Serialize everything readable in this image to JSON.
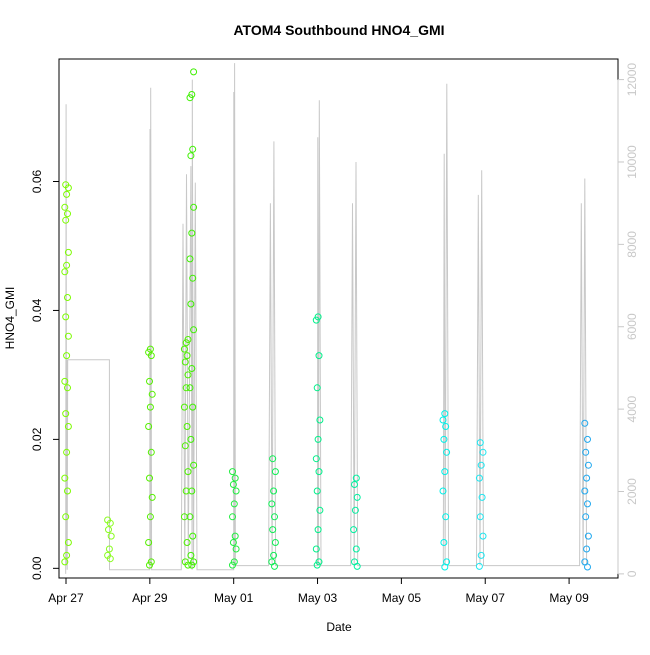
{
  "chart_data": {
    "type": "scatter",
    "title": "ATOM4 Southbound HNO4_GMI",
    "xlabel": "Date",
    "ylabel": "HNO4_GMI",
    "xlim": [
      "2018-04-26T20:00",
      "2018-05-10T04:00"
    ],
    "ylim": [
      -0.0015,
      0.079
    ],
    "y2lim": [
      -100,
      12500
    ],
    "x_tick_dates": [
      "2018-04-27",
      "2018-04-29",
      "2018-05-01",
      "2018-05-03",
      "2018-05-05",
      "2018-05-07",
      "2018-05-09"
    ],
    "x_tick_labels": [
      "Apr 27",
      "Apr 29",
      "May 01",
      "May 03",
      "May 05",
      "May 07",
      "May 09"
    ],
    "y_ticks": [
      0.0,
      0.02,
      0.04,
      0.06
    ],
    "y_tick_labels": [
      "0.00",
      "0.02",
      "0.04",
      "0.06"
    ],
    "y2_ticks": [
      0,
      2000,
      4000,
      6000,
      8000,
      10000,
      12000
    ],
    "y2_tick_labels": [
      "0",
      "2000",
      "4000",
      "6000",
      "8000",
      "10000",
      "12000"
    ],
    "grid": false,
    "legend": "none",
    "colors": {
      "altitude_line": "#c8c8c8",
      "axis": "#000000",
      "secondary_axis": "#c8c8c8",
      "palette": [
        "#7cfc00",
        "#55f000",
        "#2ef23a",
        "#00f07a",
        "#00f0b0",
        "#00f0e8",
        "#1ee6f0",
        "#1fa8ef"
      ]
    },
    "series": [
      {
        "x": "2018-04-27T00:20",
        "y": [
          0.001,
          0.002,
          0.004,
          0.008,
          0.012,
          0.014,
          0.018,
          0.022,
          0.024,
          0.028,
          0.029,
          0.033,
          0.036,
          0.039,
          0.042,
          0.046,
          0.047,
          0.049,
          0.054,
          0.055,
          0.056,
          0.058,
          0.059,
          0.0595
        ],
        "color": "#7cfc00"
      },
      {
        "x": "2018-04-28T00:50",
        "y": [
          0.0015,
          0.002,
          0.003,
          0.005,
          0.006,
          0.007,
          0.0075
        ],
        "color": "#8afc20"
      },
      {
        "x": "2018-04-29T00:20",
        "y": [
          0.0005,
          0.001,
          0.004,
          0.008,
          0.011,
          0.014,
          0.018,
          0.022,
          0.025,
          0.027,
          0.029,
          0.033,
          0.0335,
          0.034
        ],
        "color": "#55f000"
      },
      {
        "x": "2018-04-29T20:50",
        "y": [
          0.0005,
          0.001,
          0.004,
          0.008,
          0.012,
          0.015,
          0.019,
          0.022,
          0.025,
          0.028,
          0.03,
          0.032,
          0.033,
          0.034,
          0.035,
          0.0355
        ],
        "color": "#4ef000"
      },
      {
        "x": "2018-04-30T00:00",
        "y": [
          0.0005,
          0.001,
          0.002,
          0.005,
          0.008,
          0.012,
          0.016,
          0.02,
          0.025,
          0.028,
          0.031,
          0.037,
          0.041,
          0.045,
          0.048,
          0.052,
          0.056,
          0.064,
          0.065,
          0.073,
          0.0735,
          0.077
        ],
        "color": "#3ef000"
      },
      {
        "x": "2018-05-01T00:20",
        "y": [
          0.0005,
          0.001,
          0.003,
          0.004,
          0.005,
          0.008,
          0.01,
          0.012,
          0.013,
          0.014,
          0.015
        ],
        "color": "#22ee40"
      },
      {
        "x": "2018-05-01T22:50",
        "y": [
          0.0003,
          0.001,
          0.002,
          0.004,
          0.006,
          0.008,
          0.01,
          0.012,
          0.015,
          0.017
        ],
        "color": "#10ee55"
      },
      {
        "x": "2018-05-03T00:20",
        "y": [
          0.0005,
          0.001,
          0.003,
          0.006,
          0.009,
          0.012,
          0.015,
          0.017,
          0.02,
          0.023,
          0.028,
          0.033,
          0.0385,
          0.039
        ],
        "color": "#00f08a"
      },
      {
        "x": "2018-05-03T21:40",
        "y": [
          0.0003,
          0.001,
          0.003,
          0.006,
          0.009,
          0.011,
          0.013,
          0.014
        ],
        "color": "#00f0a0"
      },
      {
        "x": "2018-05-06T00:50",
        "y": [
          0.0002,
          0.001,
          0.004,
          0.008,
          0.012,
          0.015,
          0.018,
          0.02,
          0.022,
          0.023,
          0.024
        ],
        "color": "#00f0e8"
      },
      {
        "x": "2018-05-06T21:40",
        "y": [
          0.0003,
          0.002,
          0.005,
          0.008,
          0.011,
          0.014,
          0.016,
          0.018,
          0.0195
        ],
        "color": "#1ee6f0"
      },
      {
        "x": "2018-05-09T10:00",
        "y": [
          0.0002,
          0.001,
          0.003,
          0.005,
          0.008,
          0.01,
          0.012,
          0.014,
          0.016,
          0.018,
          0.02,
          0.0225
        ],
        "color": "#1fa8ef"
      }
    ],
    "altitude_series": {
      "name": "",
      "points": [
        [
          "2018-04-26T23:50",
          0
        ],
        [
          "2018-04-27T00:05",
          11400
        ],
        [
          "2018-04-27T00:20",
          200
        ],
        [
          "2018-04-27T00:25",
          5200
        ],
        [
          "2018-04-27T00:40",
          100
        ],
        [
          "2018-04-27T01:00",
          5200
        ],
        [
          "2018-04-28T00:50",
          5200
        ],
        [
          "2018-04-28T00:55",
          100
        ],
        [
          "2018-04-29T00:00",
          100
        ],
        [
          "2018-04-29T00:05",
          10800
        ],
        [
          "2018-04-29T00:20",
          200
        ],
        [
          "2018-04-29T00:30",
          11800
        ],
        [
          "2018-04-29T01:00",
          100
        ],
        [
          "2018-04-29T18:00",
          100
        ],
        [
          "2018-04-29T19:00",
          8500
        ],
        [
          "2018-04-29T20:00",
          200
        ],
        [
          "2018-04-29T21:00",
          9700
        ],
        [
          "2018-04-29T22:00",
          300
        ],
        [
          "2018-04-29T23:30",
          9900
        ],
        [
          "2018-04-30T00:10",
          100
        ],
        [
          "2018-04-30T00:20",
          12000
        ],
        [
          "2018-04-30T01:00",
          200
        ],
        [
          "2018-04-30T02:00",
          9500
        ],
        [
          "2018-04-30T03:00",
          100
        ],
        [
          "2018-05-01T00:00",
          100
        ],
        [
          "2018-05-01T00:05",
          11700
        ],
        [
          "2018-05-01T00:20",
          200
        ],
        [
          "2018-05-01T00:30",
          12400
        ],
        [
          "2018-05-01T01:00",
          200
        ],
        [
          "2018-05-01T20:00",
          200
        ],
        [
          "2018-05-01T21:00",
          9000
        ],
        [
          "2018-05-01T22:00",
          200
        ],
        [
          "2018-05-01T23:00",
          10500
        ],
        [
          "2018-05-02T00:00",
          200
        ],
        [
          "2018-05-03T00:00",
          200
        ],
        [
          "2018-05-03T00:10",
          10600
        ],
        [
          "2018-05-03T00:30",
          200
        ],
        [
          "2018-05-03T01:00",
          11500
        ],
        [
          "2018-05-03T02:00",
          200
        ],
        [
          "2018-05-03T19:00",
          200
        ],
        [
          "2018-05-03T20:00",
          9000
        ],
        [
          "2018-05-03T21:00",
          200
        ],
        [
          "2018-05-03T22:00",
          10000
        ],
        [
          "2018-05-03T23:00",
          200
        ],
        [
          "2018-05-06T00:00",
          200
        ],
        [
          "2018-05-06T00:30",
          10200
        ],
        [
          "2018-05-06T01:00",
          200
        ],
        [
          "2018-05-06T02:00",
          11900
        ],
        [
          "2018-05-06T03:00",
          200
        ],
        [
          "2018-05-06T19:00",
          200
        ],
        [
          "2018-05-06T20:00",
          9200
        ],
        [
          "2018-05-06T21:00",
          200
        ],
        [
          "2018-05-06T22:00",
          9800
        ],
        [
          "2018-05-06T23:00",
          200
        ],
        [
          "2018-05-09T06:00",
          200
        ],
        [
          "2018-05-09T07:00",
          9000
        ],
        [
          "2018-05-09T08:00",
          200
        ],
        [
          "2018-05-09T09:00",
          9600
        ],
        [
          "2018-05-09T10:00",
          200
        ]
      ]
    }
  }
}
